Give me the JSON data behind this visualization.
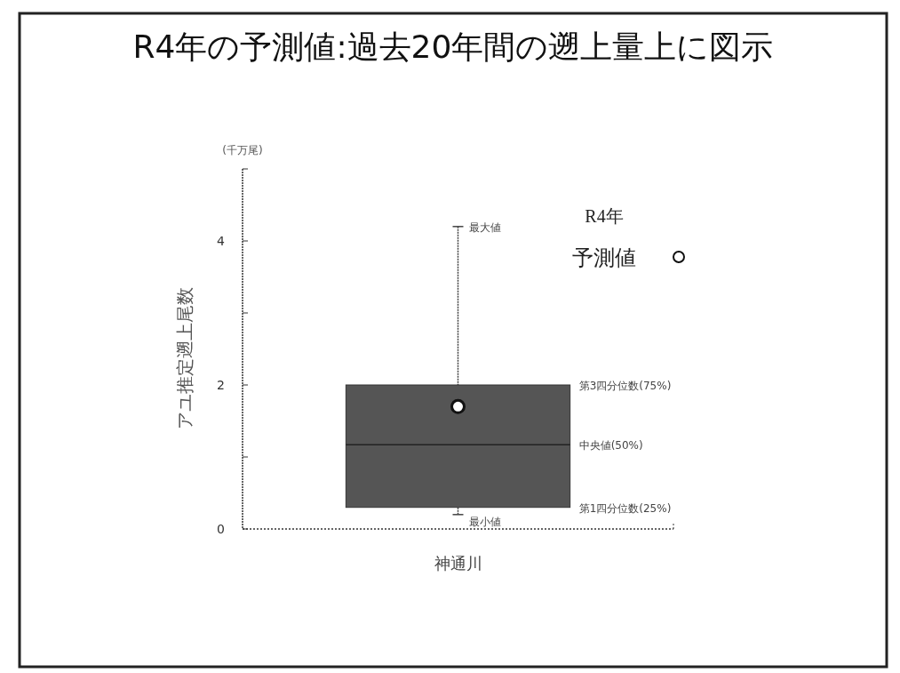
{
  "chart_data": {
    "type": "box",
    "title": "R4年の予測値:過去20年間の遡上量上に図示",
    "ylabel": "アユ推定遡上尾数",
    "categories": [
      "神通川"
    ],
    "series": [
      {
        "type": "box",
        "color": "#555555",
        "boxes": [
          {
            "low": 0.2,
            "q1": 0.3,
            "median": 1.17,
            "q3": 2.0,
            "high": 4.2
          }
        ]
      },
      {
        "type": "scatter",
        "name": "予測値",
        "x": [
          "神通川"
        ],
        "values": [
          1.7
        ],
        "color": "#ffffff"
      }
    ],
    "ylim": [
      0,
      5
    ],
    "yticks": [
      0,
      {
        "value": 1,
        "label": null
      },
      2,
      {
        "value": 3,
        "label": null
      },
      4
    ],
    "marker": "circle",
    "legend": "top right",
    "legend_title": "R4年",
    "annotations": [
      "(千万尾)",
      "最大値",
      "第3四分位数(75%)",
      "中央値(50%)",
      "第1四分位数(25%)",
      "最小値"
    ]
  }
}
